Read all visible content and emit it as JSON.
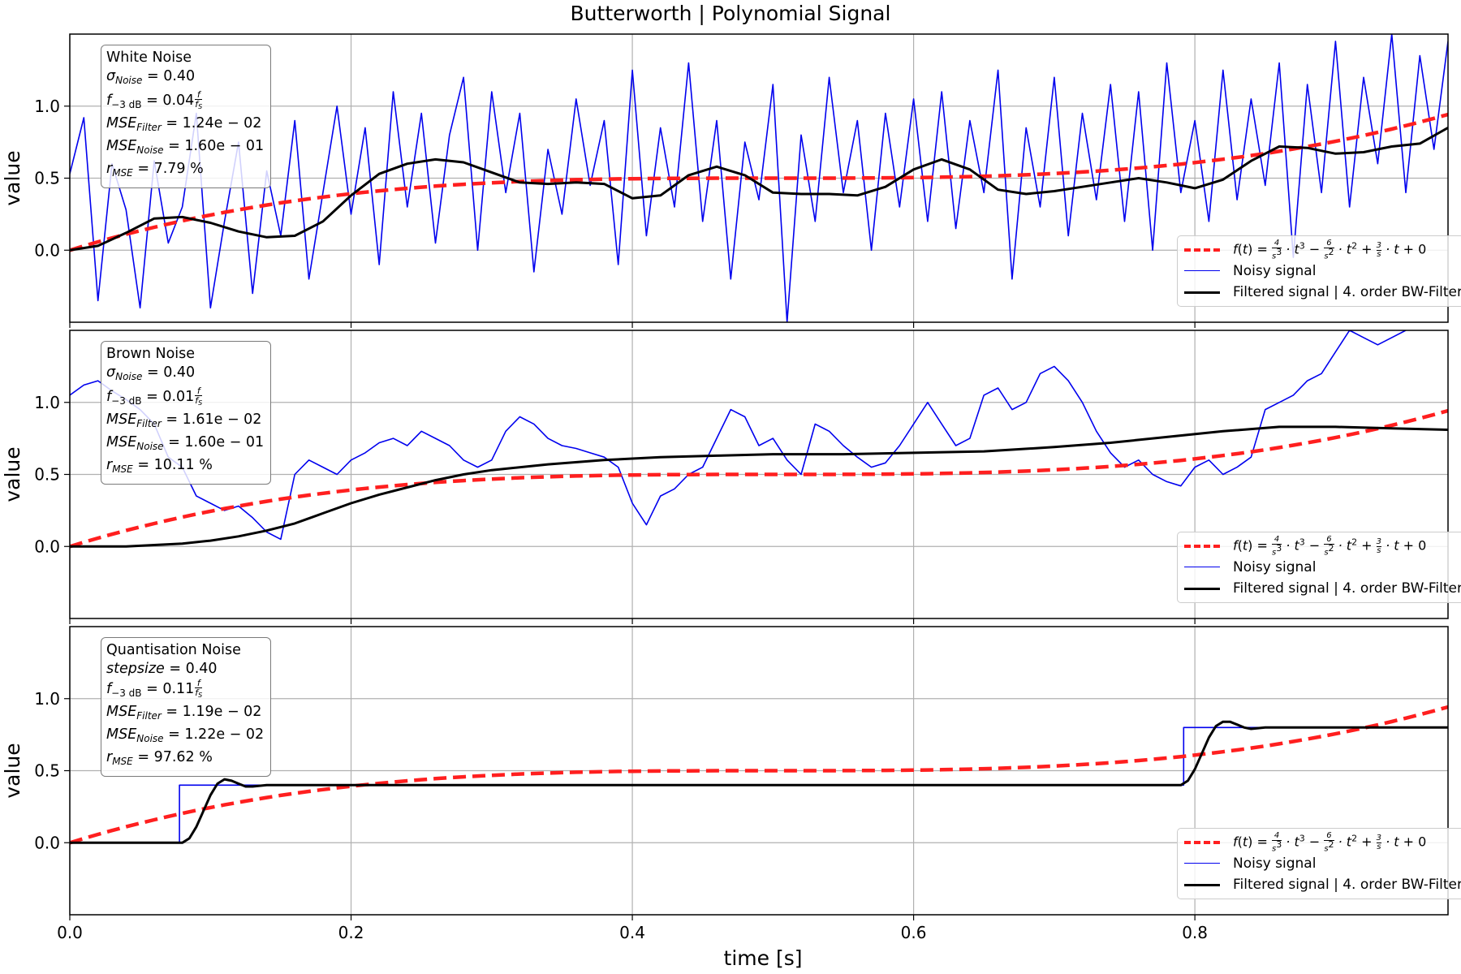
{
  "chart_data": {
    "type": "line",
    "title": "Butterworth | Polynomial Signal",
    "xlabel": "time [s]",
    "ylabel": "value",
    "xlim": [
      0.0,
      0.98
    ],
    "ylim": [
      -0.5,
      1.5
    ],
    "xticks": [
      "0.0",
      "0.2",
      "0.4",
      "0.6",
      "0.8"
    ],
    "yticks": [
      "0.0",
      "0.5",
      "1.0"
    ],
    "grid": true,
    "legend_position": "lower right",
    "legend": {
      "reference_formula": "f(t) = 4/s³ · t³ − 6/s² · t² + 3/s · t + 0",
      "noisy": "Noisy signal",
      "filtered": "Filtered signal | 4. order BW-Filter"
    },
    "panels": [
      {
        "noise_type": "White Noise",
        "param_label": "σ_Noise",
        "param_value": "0.40",
        "cutoff": "0.04",
        "mse_filter": "1.24e − 02",
        "mse_noise": "1.60e − 01",
        "r_mse": "7.79 %",
        "series": [
          {
            "name": "Noisy signal",
            "x": [
              0.0,
              0.01,
              0.02,
              0.03,
              0.04,
              0.05,
              0.06,
              0.07,
              0.08,
              0.09,
              0.1,
              0.11,
              0.12,
              0.13,
              0.14,
              0.15,
              0.16,
              0.17,
              0.18,
              0.19,
              0.2,
              0.21,
              0.22,
              0.23,
              0.24,
              0.25,
              0.26,
              0.27,
              0.28,
              0.29,
              0.3,
              0.31,
              0.32,
              0.33,
              0.34,
              0.35,
              0.36,
              0.37,
              0.38,
              0.39,
              0.4,
              0.41,
              0.42,
              0.43,
              0.44,
              0.45,
              0.46,
              0.47,
              0.48,
              0.49,
              0.5,
              0.51,
              0.52,
              0.53,
              0.54,
              0.55,
              0.56,
              0.57,
              0.58,
              0.59,
              0.6,
              0.61,
              0.62,
              0.63,
              0.64,
              0.65,
              0.66,
              0.67,
              0.68,
              0.69,
              0.7,
              0.71,
              0.72,
              0.73,
              0.74,
              0.75,
              0.76,
              0.77,
              0.78,
              0.79,
              0.8,
              0.81,
              0.82,
              0.83,
              0.84,
              0.85,
              0.86,
              0.87,
              0.88,
              0.89,
              0.9,
              0.91,
              0.92,
              0.93,
              0.94,
              0.95,
              0.96,
              0.97,
              0.98
            ],
            "y": [
              0.53,
              0.92,
              -0.35,
              0.6,
              0.28,
              -0.4,
              0.62,
              0.05,
              0.3,
              0.95,
              -0.4,
              0.2,
              0.75,
              -0.3,
              0.55,
              0.1,
              0.9,
              -0.2,
              0.4,
              1.0,
              0.25,
              0.85,
              -0.1,
              1.1,
              0.3,
              0.95,
              0.05,
              0.8,
              1.2,
              0.0,
              1.1,
              0.4,
              0.95,
              -0.15,
              0.7,
              0.25,
              1.05,
              0.45,
              0.9,
              -0.1,
              1.25,
              0.1,
              0.85,
              0.3,
              1.3,
              0.2,
              0.9,
              -0.2,
              0.75,
              0.35,
              1.15,
              -0.5,
              0.8,
              0.2,
              1.2,
              0.4,
              0.9,
              0.0,
              0.95,
              0.3,
              1.05,
              0.2,
              1.1,
              0.15,
              0.9,
              0.4,
              1.25,
              -0.2,
              0.85,
              0.3,
              1.2,
              0.1,
              0.95,
              0.35,
              1.15,
              0.2,
              1.1,
              0.0,
              1.3,
              0.4,
              0.9,
              0.2,
              1.25,
              0.35,
              1.05,
              0.45,
              1.3,
              -0.05,
              1.15,
              0.4,
              1.45,
              0.3,
              1.2,
              0.6,
              1.5,
              0.4,
              1.35,
              0.7,
              1.45
            ]
          },
          {
            "name": "Filtered signal | 4. order BW-Filter",
            "x": [
              0.0,
              0.02,
              0.04,
              0.06,
              0.08,
              0.1,
              0.12,
              0.14,
              0.16,
              0.18,
              0.2,
              0.22,
              0.24,
              0.26,
              0.28,
              0.3,
              0.32,
              0.34,
              0.36,
              0.38,
              0.4,
              0.42,
              0.44,
              0.46,
              0.48,
              0.5,
              0.52,
              0.54,
              0.56,
              0.58,
              0.6,
              0.62,
              0.64,
              0.66,
              0.68,
              0.7,
              0.72,
              0.74,
              0.76,
              0.78,
              0.8,
              0.82,
              0.84,
              0.86,
              0.88,
              0.9,
              0.92,
              0.94,
              0.96,
              0.98
            ],
            "y": [
              0.0,
              0.03,
              0.12,
              0.22,
              0.23,
              0.19,
              0.13,
              0.09,
              0.1,
              0.2,
              0.38,
              0.53,
              0.6,
              0.63,
              0.61,
              0.54,
              0.47,
              0.46,
              0.47,
              0.46,
              0.36,
              0.38,
              0.52,
              0.58,
              0.52,
              0.4,
              0.39,
              0.39,
              0.38,
              0.44,
              0.56,
              0.63,
              0.56,
              0.42,
              0.39,
              0.41,
              0.44,
              0.47,
              0.5,
              0.47,
              0.43,
              0.49,
              0.62,
              0.72,
              0.71,
              0.67,
              0.68,
              0.72,
              0.74,
              0.85
            ]
          }
        ]
      },
      {
        "noise_type": "Brown Noise",
        "param_label": "σ_Noise",
        "param_value": "0.40",
        "cutoff": "0.01",
        "mse_filter": "1.61e − 02",
        "mse_noise": "1.60e − 01",
        "r_mse": "10.11 %",
        "series": [
          {
            "name": "Noisy signal",
            "x": [
              0.0,
              0.01,
              0.02,
              0.03,
              0.04,
              0.05,
              0.06,
              0.07,
              0.08,
              0.09,
              0.1,
              0.11,
              0.12,
              0.13,
              0.14,
              0.15,
              0.16,
              0.17,
              0.18,
              0.19,
              0.2,
              0.21,
              0.22,
              0.23,
              0.24,
              0.25,
              0.26,
              0.27,
              0.28,
              0.29,
              0.3,
              0.31,
              0.32,
              0.33,
              0.34,
              0.35,
              0.36,
              0.37,
              0.38,
              0.39,
              0.4,
              0.41,
              0.42,
              0.43,
              0.44,
              0.45,
              0.46,
              0.47,
              0.48,
              0.49,
              0.5,
              0.51,
              0.52,
              0.53,
              0.54,
              0.55,
              0.56,
              0.57,
              0.58,
              0.59,
              0.6,
              0.61,
              0.62,
              0.63,
              0.64,
              0.65,
              0.66,
              0.67,
              0.68,
              0.69,
              0.7,
              0.71,
              0.72,
              0.73,
              0.74,
              0.75,
              0.76,
              0.77,
              0.78,
              0.79,
              0.8,
              0.81,
              0.82,
              0.83,
              0.84,
              0.85,
              0.86,
              0.87,
              0.88,
              0.89,
              0.9,
              0.91,
              0.92,
              0.93,
              0.94,
              0.95
            ],
            "y": [
              1.05,
              1.12,
              1.15,
              1.08,
              1.02,
              0.95,
              0.85,
              0.62,
              0.55,
              0.35,
              0.3,
              0.25,
              0.28,
              0.2,
              0.1,
              0.05,
              0.5,
              0.6,
              0.55,
              0.5,
              0.6,
              0.65,
              0.72,
              0.75,
              0.7,
              0.8,
              0.75,
              0.7,
              0.6,
              0.55,
              0.6,
              0.8,
              0.9,
              0.85,
              0.75,
              0.7,
              0.68,
              0.65,
              0.62,
              0.55,
              0.3,
              0.15,
              0.35,
              0.4,
              0.5,
              0.55,
              0.75,
              0.95,
              0.9,
              0.7,
              0.75,
              0.6,
              0.5,
              0.85,
              0.8,
              0.7,
              0.62,
              0.55,
              0.58,
              0.7,
              0.85,
              1.0,
              0.85,
              0.7,
              0.75,
              1.05,
              1.1,
              0.95,
              1.0,
              1.2,
              1.25,
              1.15,
              1.0,
              0.8,
              0.65,
              0.55,
              0.6,
              0.5,
              0.45,
              0.42,
              0.55,
              0.6,
              0.5,
              0.55,
              0.62,
              0.95,
              1.0,
              1.05,
              1.15,
              1.2,
              1.35,
              1.5,
              1.45,
              1.4,
              1.45,
              1.5
            ]
          },
          {
            "name": "Filtered signal | 4. order BW-Filter",
            "x": [
              0.0,
              0.04,
              0.08,
              0.1,
              0.12,
              0.14,
              0.16,
              0.18,
              0.2,
              0.22,
              0.24,
              0.26,
              0.28,
              0.3,
              0.34,
              0.38,
              0.42,
              0.46,
              0.5,
              0.55,
              0.6,
              0.65,
              0.7,
              0.74,
              0.78,
              0.82,
              0.86,
              0.9,
              0.94,
              0.98
            ],
            "y": [
              0.0,
              0.0,
              0.02,
              0.04,
              0.07,
              0.11,
              0.16,
              0.23,
              0.3,
              0.36,
              0.41,
              0.46,
              0.5,
              0.53,
              0.57,
              0.6,
              0.62,
              0.63,
              0.64,
              0.64,
              0.65,
              0.66,
              0.69,
              0.72,
              0.76,
              0.8,
              0.83,
              0.83,
              0.82,
              0.81
            ]
          }
        ]
      },
      {
        "noise_type": "Quantisation Noise",
        "param_label": "stepsize",
        "param_value": "0.40",
        "cutoff": "0.11",
        "mse_filter": "1.19e − 02",
        "mse_noise": "1.22e − 02",
        "r_mse": "97.62 %",
        "series": [
          {
            "name": "Noisy signal",
            "x": [
              0.0,
              0.078,
              0.078,
              0.792,
              0.792,
              0.98
            ],
            "y": [
              0.0,
              0.0,
              0.4,
              0.4,
              0.8,
              0.8
            ]
          },
          {
            "name": "Filtered signal | 4. order BW-Filter",
            "x": [
              0.0,
              0.08,
              0.085,
              0.09,
              0.095,
              0.1,
              0.105,
              0.11,
              0.115,
              0.12,
              0.125,
              0.13,
              0.14,
              0.15,
              0.2,
              0.79,
              0.795,
              0.8,
              0.805,
              0.81,
              0.815,
              0.82,
              0.825,
              0.83,
              0.835,
              0.84,
              0.85,
              0.86,
              0.98
            ],
            "y": [
              0.0,
              0.0,
              0.03,
              0.11,
              0.22,
              0.33,
              0.41,
              0.44,
              0.43,
              0.41,
              0.39,
              0.39,
              0.4,
              0.4,
              0.4,
              0.4,
              0.43,
              0.51,
              0.62,
              0.73,
              0.81,
              0.84,
              0.84,
              0.82,
              0.8,
              0.79,
              0.8,
              0.8,
              0.8
            ]
          }
        ]
      }
    ]
  }
}
